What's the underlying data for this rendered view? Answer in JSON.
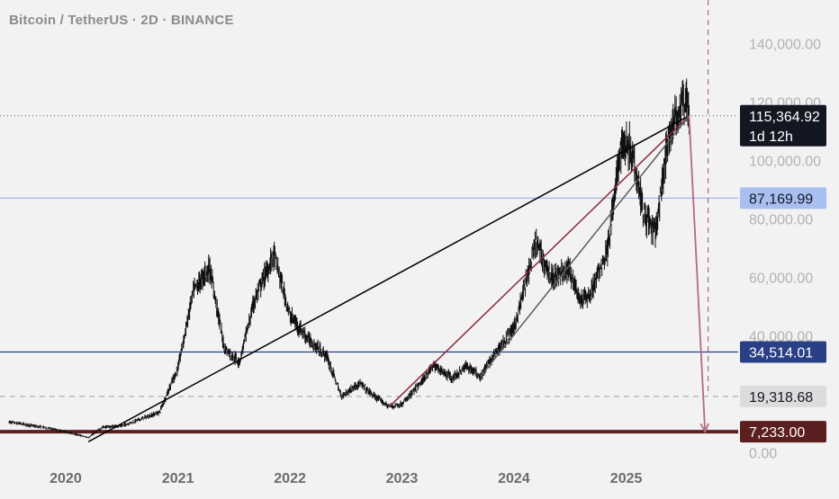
{
  "header": {
    "symbol_title": "Bitcoin / TetherUS · 2D · BINANCE"
  },
  "price_scale": {
    "ticks": [
      {
        "value": 140000,
        "label": "140,000.00"
      },
      {
        "value": 120000,
        "label": "120,000.00"
      },
      {
        "value": 100000,
        "label": "100,000.00"
      },
      {
        "value": 80000,
        "label": "80,000.00"
      },
      {
        "value": 60000,
        "label": "60,000.00"
      },
      {
        "value": 40000,
        "label": "40,000.00"
      },
      {
        "value": 0,
        "label": "0.00"
      }
    ]
  },
  "time_scale": {
    "ticks": [
      {
        "date": "2020-01-01",
        "label": "2020"
      },
      {
        "date": "2021-01-01",
        "label": "2021"
      },
      {
        "date": "2022-01-01",
        "label": "2022"
      },
      {
        "date": "2023-01-01",
        "label": "2023"
      },
      {
        "date": "2024-01-01",
        "label": "2024"
      },
      {
        "date": "2025-01-01",
        "label": "2025"
      }
    ]
  },
  "current_price": {
    "value": 115364.92,
    "label": "115,364.92",
    "countdown": "1d 12h",
    "color": "#131722"
  },
  "horizontal_levels": [
    {
      "value": 87169.99,
      "label": "87,169.99",
      "line_color": "#9fb5e8",
      "badge_color": "#a9bff0",
      "text_color": "#131722",
      "style": "solid"
    },
    {
      "value": 34514.01,
      "label": "34,514.01",
      "line_color": "#2a3f85",
      "badge_color": "#2a3f85",
      "text_color": "#ffffff",
      "style": "solid"
    },
    {
      "value": 19318.68,
      "label": "19,318.68",
      "line_color": "#a0a0a0",
      "badge_color": "#dcdcdc",
      "text_color": "#131722",
      "style": "dashed"
    },
    {
      "value": 7233.0,
      "label": "7,233.00",
      "line_color": "#5c1f1f",
      "badge_color": "#5c1f1f",
      "text_color": "#ffffff",
      "style": "thick"
    }
  ],
  "chart_data": {
    "type": "line",
    "x_axis": "date",
    "y_axis": "price",
    "xlim": [
      "2019-06-01",
      "2026-01-01"
    ],
    "ylim": [
      -3500,
      155000
    ],
    "grid": false,
    "x": [
      "2019-07-01",
      "2019-09-01",
      "2019-11-01",
      "2020-01-01",
      "2020-03-15",
      "2020-05-01",
      "2020-07-01",
      "2020-09-01",
      "2020-11-01",
      "2021-01-01",
      "2021-02-20",
      "2021-04-14",
      "2021-06-01",
      "2021-07-20",
      "2021-09-07",
      "2021-11-10",
      "2022-01-01",
      "2022-03-01",
      "2022-05-01",
      "2022-06-18",
      "2022-08-15",
      "2022-10-01",
      "2022-11-21",
      "2023-01-01",
      "2023-03-01",
      "2023-04-14",
      "2023-06-15",
      "2023-08-01",
      "2023-09-15",
      "2023-11-01",
      "2024-01-01",
      "2024-03-14",
      "2024-05-01",
      "2024-07-01",
      "2024-08-05",
      "2024-09-06",
      "2024-11-01",
      "2024-12-17",
      "2025-01-20",
      "2025-02-28",
      "2025-04-07",
      "2025-05-22",
      "2025-07-14",
      "2025-07-25"
    ],
    "y": [
      10500,
      9500,
      8500,
      7200,
      5200,
      8800,
      9200,
      11500,
      13800,
      29000,
      55000,
      63500,
      36000,
      31000,
      52000,
      68000,
      47000,
      39000,
      33000,
      19300,
      23800,
      19500,
      15800,
      16600,
      23500,
      30000,
      25500,
      29800,
      26200,
      34000,
      42500,
      72000,
      60000,
      62500,
      52000,
      54000,
      70000,
      106000,
      104000,
      82000,
      75000,
      110000,
      122000,
      115364.92
    ],
    "candles_note": "approximate 2D close series, rendered as candle noise around this path",
    "annotations": {
      "trendlines": [
        {
          "from": [
            "2020-03-15",
            3800
          ],
          "to": [
            "2025-07-25",
            115364.92
          ],
          "color": "#000000"
        },
        {
          "from": [
            "2022-11-21",
            15800
          ],
          "to": [
            "2025-07-25",
            115364.92
          ],
          "color": "#8b2b3a"
        },
        {
          "from": [
            "2023-09-15",
            26200
          ],
          "to": [
            "2025-07-25",
            115364.92
          ],
          "color": "#5e5e5e"
        }
      ],
      "arrows": [
        {
          "from": [
            "2025-07-25",
            115364.92
          ],
          "to": [
            "2025-09-15",
            7233.0
          ],
          "color": "#b06a85"
        }
      ],
      "vertical_dashed": [
        {
          "date": "2025-09-25",
          "color": "#b06a85"
        }
      ]
    }
  }
}
